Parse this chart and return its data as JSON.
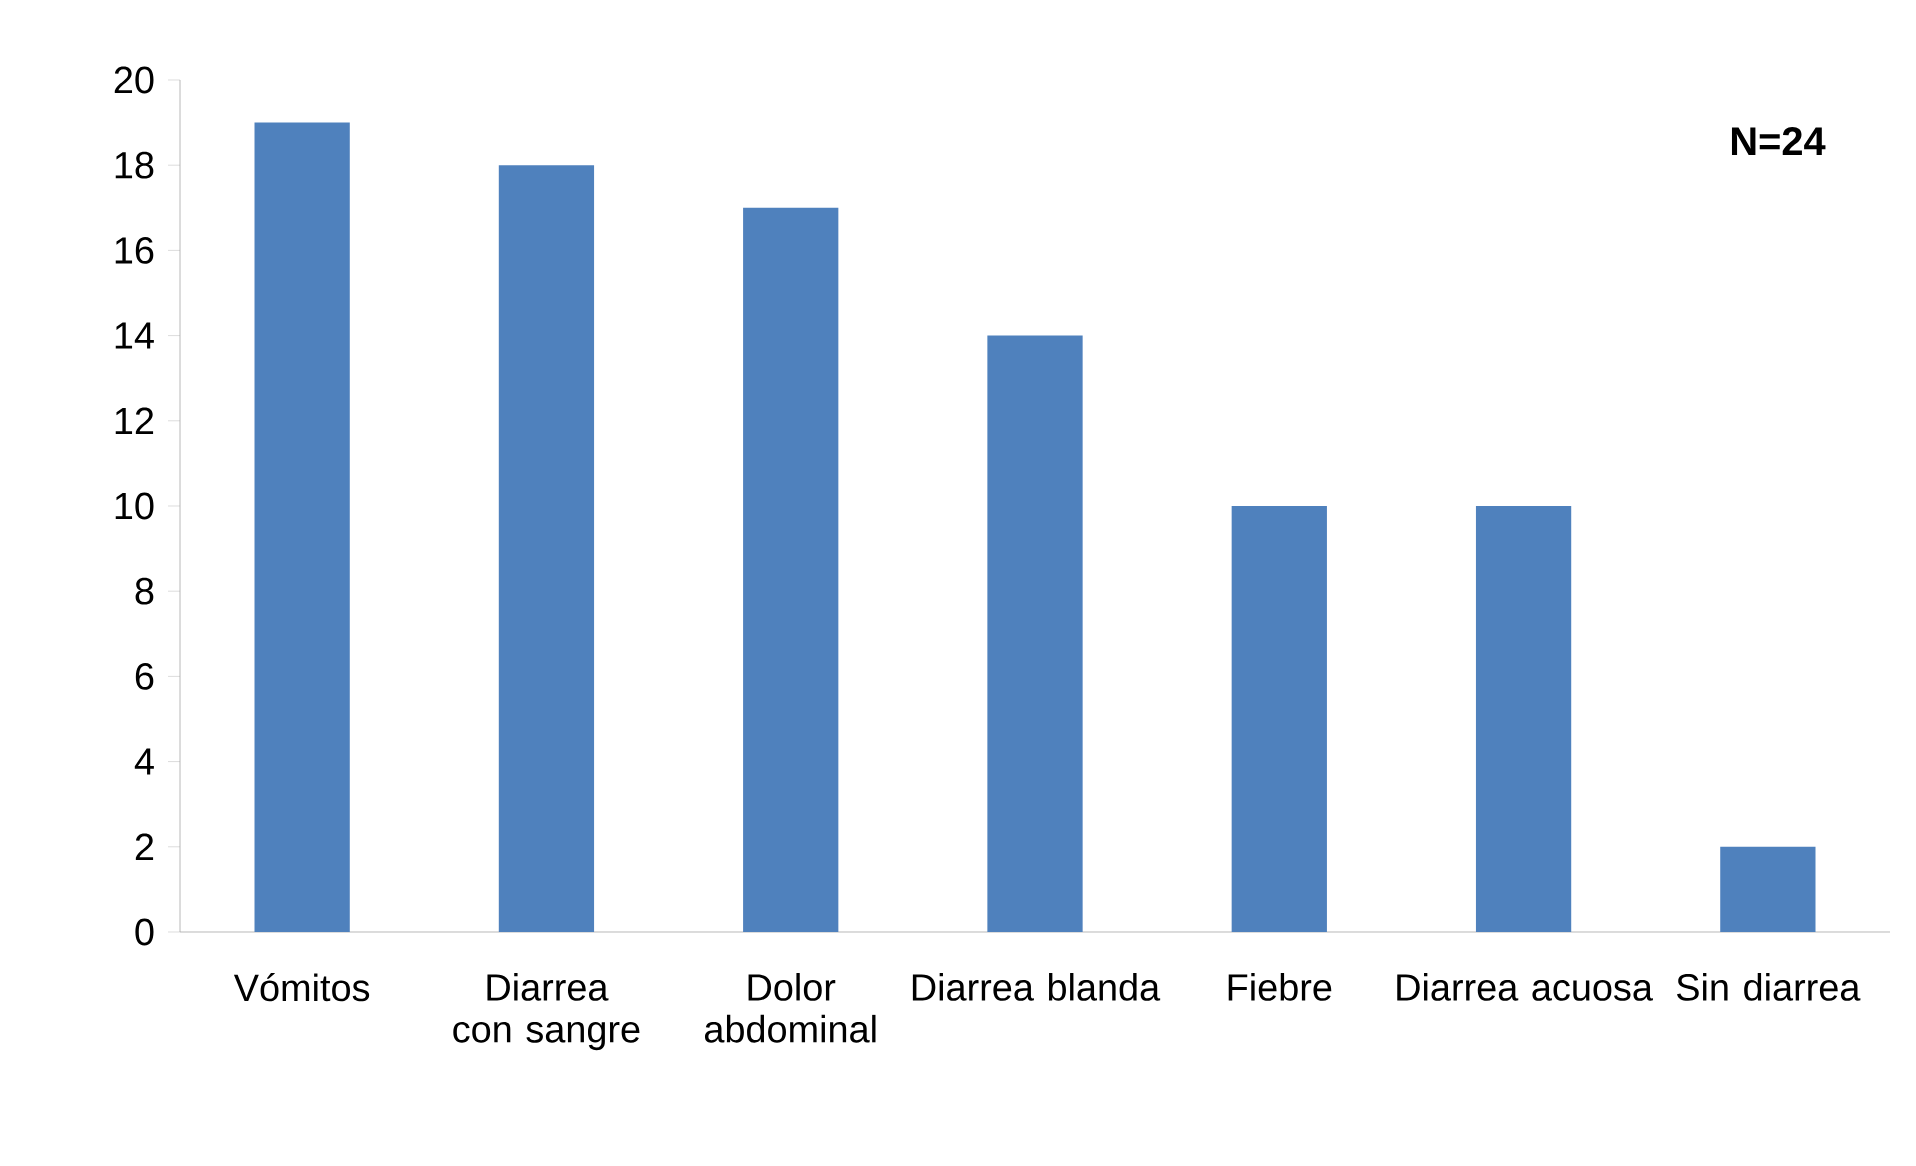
{
  "chart_data": {
    "type": "bar",
    "categories": [
      "Vómitos",
      "Diarrea con sangre",
      "Dolor abdominal",
      "Diarrea blanda",
      "Fiebre",
      "Diarrea acuosa",
      "Sin diarrea"
    ],
    "values": [
      19,
      18,
      17,
      14,
      10,
      10,
      2
    ],
    "color": "#4f81bd",
    "ylim": [
      0,
      20
    ],
    "yticks": [
      0,
      2,
      4,
      6,
      8,
      10,
      12,
      14,
      16,
      18,
      20
    ],
    "annotations": [
      "N=24"
    ]
  }
}
